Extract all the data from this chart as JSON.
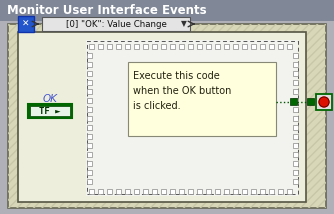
{
  "title": "Monitor User Interface Events",
  "title_fontsize": 8.5,
  "bg_color": "#b0b0b8",
  "stripe_color": "#d8d8b8",
  "inner_bg": "#eeeedd",
  "event_label": "[0] \"OK\": Value Change",
  "note_text": "Execute this code\nwhen the OK button\nis clicked.",
  "ok_label": "OK",
  "tf_label": "TF ►",
  "title_bar_color": "#808898",
  "blue_box_color": "#2255cc",
  "green_dark": "#006600",
  "green_sq": "#006600",
  "red_color": "#dd1100",
  "note_bg": "#ffffdd",
  "note_border": "#888877",
  "sq_fill": "#ffffff",
  "sq_border": "#888888",
  "wire_color": "#005500",
  "stop_bg": "#e0e0e0",
  "stop_border": "#006600",
  "tf_border": "#006600",
  "tf_bg": "#e8f4e8",
  "ok_color": "#4455cc"
}
